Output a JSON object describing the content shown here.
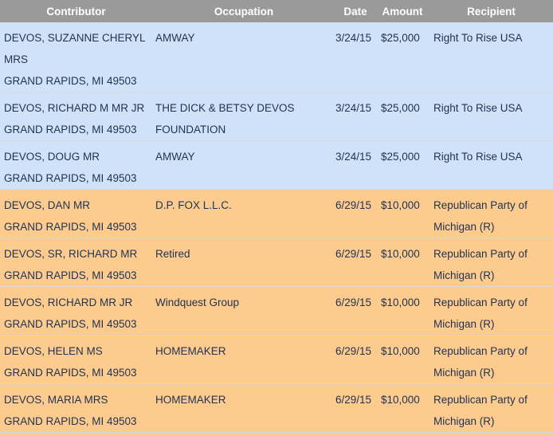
{
  "table": {
    "columns": [
      "Contributor",
      "Occupation",
      "Date",
      "Amount",
      "Recipient"
    ],
    "rows": [
      {
        "name": "DEVOS, SUZANNE CHERYL MRS",
        "address": "GRAND RAPIDS, MI 49503",
        "occupation": "AMWAY",
        "date": "3/24/15",
        "amount": "$25,000",
        "recipient": "Right To Rise USA",
        "group": "blue"
      },
      {
        "name": "DEVOS, RICHARD M MR JR",
        "address": "GRAND RAPIDS, MI 49503",
        "occupation": "THE DICK & BETSY DEVOS FOUNDATION",
        "date": "3/24/15",
        "amount": "$25,000",
        "recipient": "Right To Rise USA",
        "group": "blue"
      },
      {
        "name": "DEVOS, DOUG MR",
        "address": "GRAND RAPIDS, MI 49503",
        "occupation": "AMWAY",
        "date": "3/24/15",
        "amount": "$25,000",
        "recipient": "Right To Rise USA",
        "group": "blue"
      },
      {
        "name": "DEVOS, DAN MR",
        "address": "GRAND RAPIDS, MI 49503",
        "occupation": "D.P. FOX L.L.C.",
        "date": "6/29/15",
        "amount": "$10,000",
        "recipient": "Republican Party of Michigan (R)",
        "group": "orange"
      },
      {
        "name": "DEVOS, SR, RICHARD MR",
        "address": "GRAND RAPIDS, MI 49503",
        "occupation": "Retired",
        "date": "6/29/15",
        "amount": "$10,000",
        "recipient": "Republican Party of Michigan (R)",
        "group": "orange"
      },
      {
        "name": "DEVOS, RICHARD MR JR",
        "address": "GRAND RAPIDS, MI 49503",
        "occupation": "Windquest Group",
        "date": "6/29/15",
        "amount": "$10,000",
        "recipient": "Republican Party of Michigan (R)",
        "group": "orange"
      },
      {
        "name": "DEVOS, HELEN MS",
        "address": "GRAND RAPIDS, MI 49503",
        "occupation": "HOMEMAKER",
        "date": "6/29/15",
        "amount": "$10,000",
        "recipient": "Republican Party of Michigan (R)",
        "group": "orange"
      },
      {
        "name": "DEVOS, MARIA MRS",
        "address": "GRAND RAPIDS, MI 49503",
        "occupation": "HOMEMAKER",
        "date": "6/29/15",
        "amount": "$10,000",
        "recipient": "Republican Party of Michigan (R)",
        "group": "orange"
      }
    ],
    "colors": {
      "header_bg": "#9a9a9a",
      "header_text": "#ffffff",
      "row_blue": "#d0e2f7",
      "row_orange": "#fccb8d",
      "text": "#1e3255",
      "divider": "#d4dade"
    }
  }
}
